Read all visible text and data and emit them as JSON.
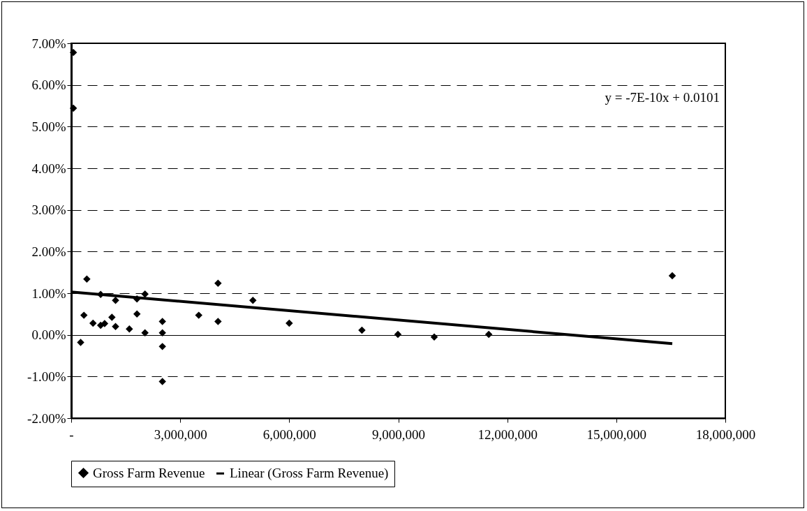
{
  "chart_data": {
    "type": "scatter",
    "grid": "y",
    "legend": "bottom",
    "xlim": [
      0,
      18000000
    ],
    "xticks": [
      {
        "value": 0,
        "label": "-"
      },
      {
        "value": 3000000,
        "label": "3,000,000"
      },
      {
        "value": 6000000,
        "label": "6,000,000"
      },
      {
        "value": 9000000,
        "label": "9,000,000"
      },
      {
        "value": 12000000,
        "label": "12,000,000"
      },
      {
        "value": 15000000,
        "label": "15,000,000"
      },
      {
        "value": 18000000,
        "label": "18,000,000"
      }
    ],
    "ylim": [
      -2,
      7
    ],
    "yticks": [
      {
        "value": -2,
        "label": "-2.00%"
      },
      {
        "value": -1,
        "label": "-1.00%"
      },
      {
        "value": 0,
        "label": "0.00%"
      },
      {
        "value": 1,
        "label": "1.00%"
      },
      {
        "value": 2,
        "label": "2.00%"
      },
      {
        "value": 3,
        "label": "3.00%"
      },
      {
        "value": 4,
        "label": "4.00%"
      },
      {
        "value": 5,
        "label": "5.00%"
      },
      {
        "value": 6,
        "label": "6.00%"
      },
      {
        "value": 7,
        "label": "7.00%"
      }
    ],
    "annotations": [
      "y = -7E-10x + 0.0101"
    ],
    "series": [
      {
        "name": "Gross Farm Revenue",
        "color": "#000000",
        "marker": "diamond",
        "x": [
          60000,
          60000,
          260000,
          430000,
          350000,
          600000,
          810000,
          810000,
          920000,
          1120000,
          1220000,
          1220000,
          1600000,
          1810000,
          1810000,
          2030000,
          2030000,
          2510000,
          2510000,
          2510000,
          2510000,
          3510000,
          4040000,
          4040000,
          5000000,
          6000000,
          8000000,
          8990000,
          9990000,
          11490000,
          16540000
        ],
        "values": [
          6.78,
          5.44,
          -0.18,
          1.34,
          0.47,
          0.28,
          0.97,
          0.23,
          0.27,
          0.42,
          0.83,
          0.2,
          0.14,
          0.86,
          0.5,
          0.98,
          0.05,
          0.32,
          0.05,
          -0.28,
          -1.12,
          0.47,
          1.24,
          0.32,
          0.83,
          0.28,
          0.11,
          0.01,
          -0.05,
          0.01,
          1.42
        ]
      },
      {
        "name": "Linear (Gross Farm Revenue)",
        "type": "line",
        "line_style": "solid",
        "color": "#000000",
        "x": [
          0,
          16540000
        ],
        "values": [
          1.03,
          -0.21
        ]
      }
    ]
  }
}
